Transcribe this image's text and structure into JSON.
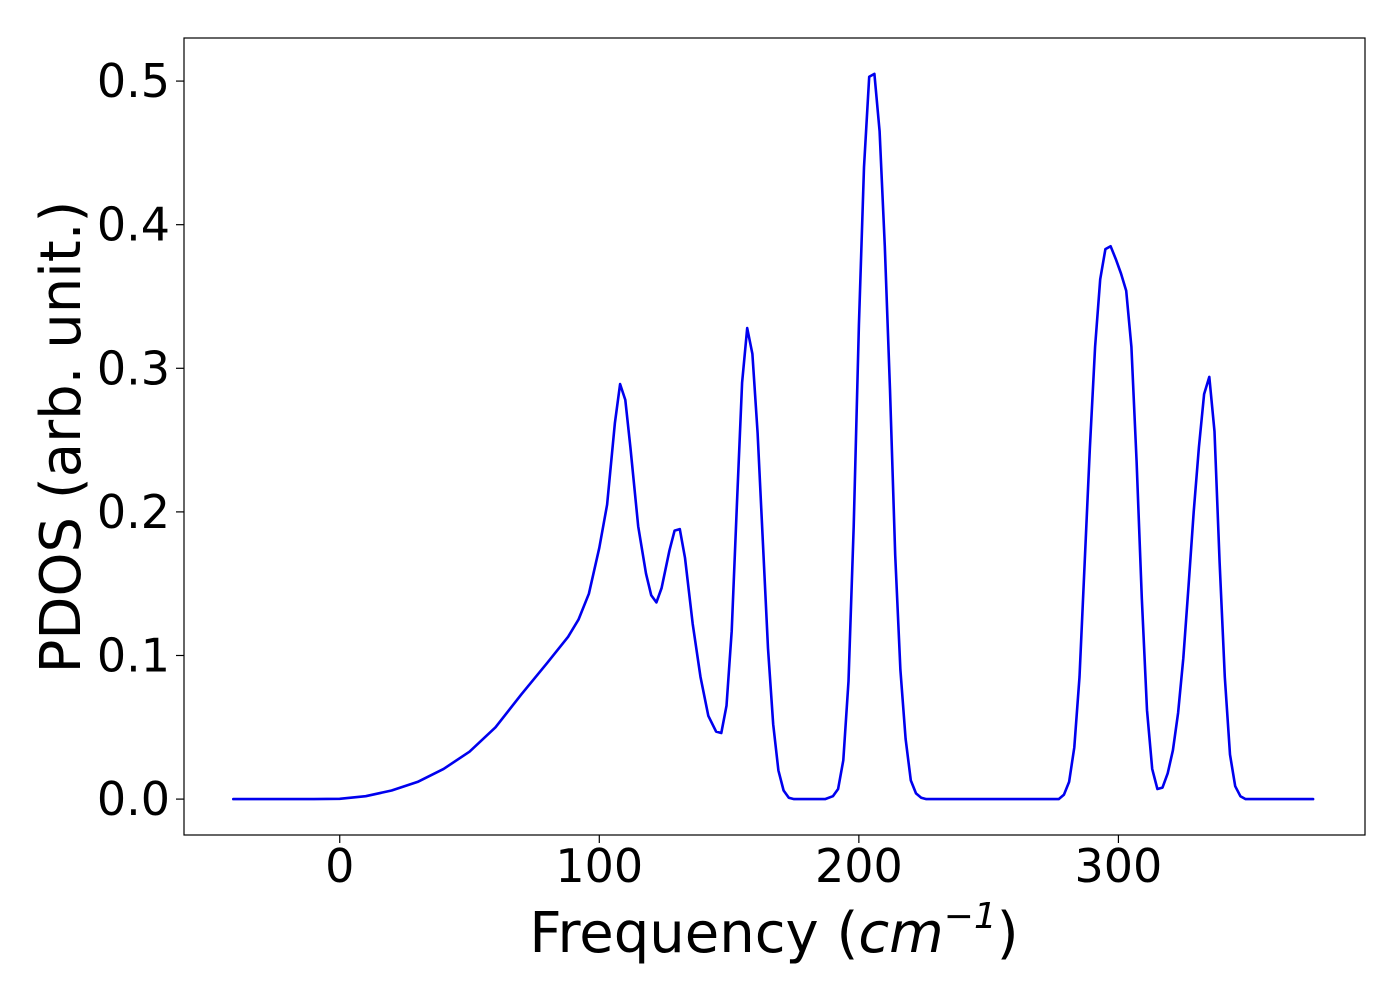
{
  "chart_data": {
    "type": "line",
    "title": "",
    "xlabel_main": "Frequency (",
    "xlabel_var": "cm",
    "xlabel_sup": "−1",
    "xlabel_close": ")",
    "ylabel": "PDOS (arb. unit.)",
    "xlim": [
      -60,
      395
    ],
    "ylim": [
      -0.025,
      0.53
    ],
    "xticks": [
      0,
      100,
      200,
      300
    ],
    "xtick_labels": [
      "0",
      "100",
      "200",
      "300"
    ],
    "yticks": [
      0.0,
      0.1,
      0.2,
      0.3,
      0.4,
      0.5
    ],
    "ytick_labels": [
      "0.0",
      "0.1",
      "0.2",
      "0.3",
      "0.4",
      "0.5"
    ],
    "grid": false,
    "series": [
      {
        "color": "#0000ee",
        "x": [
          -41,
          -10,
          0,
          10,
          20,
          30,
          40,
          50,
          60,
          70,
          80,
          88,
          92,
          96,
          100,
          103,
          106,
          108,
          110,
          112,
          115,
          118,
          120,
          122,
          124,
          127,
          129,
          131,
          133,
          136,
          139,
          142,
          145,
          147,
          149,
          151,
          153,
          155,
          157,
          159,
          161,
          163,
          165,
          167,
          169,
          171,
          173,
          175,
          180,
          187,
          190,
          192,
          194,
          196,
          198,
          200,
          202,
          204,
          206,
          208,
          210,
          212,
          214,
          216,
          218,
          220,
          222,
          224,
          226,
          228,
          230,
          250,
          270,
          277,
          279,
          281,
          283,
          285,
          287,
          289,
          291,
          293,
          295,
          297,
          299,
          301,
          303,
          305,
          307,
          309,
          311,
          313,
          315,
          317,
          319,
          321,
          323,
          325,
          327,
          329,
          331,
          333,
          335,
          337,
          339,
          341,
          343,
          345,
          347,
          349,
          351,
          355,
          375
        ],
        "y": [
          0.0,
          0.0,
          0.0002,
          0.002,
          0.006,
          0.012,
          0.021,
          0.033,
          0.05,
          0.073,
          0.095,
          0.113,
          0.125,
          0.143,
          0.175,
          0.205,
          0.262,
          0.289,
          0.278,
          0.245,
          0.19,
          0.157,
          0.142,
          0.137,
          0.147,
          0.173,
          0.187,
          0.188,
          0.168,
          0.122,
          0.085,
          0.058,
          0.047,
          0.046,
          0.065,
          0.117,
          0.205,
          0.29,
          0.328,
          0.31,
          0.255,
          0.18,
          0.105,
          0.052,
          0.02,
          0.006,
          0.001,
          0.0,
          0.0,
          0.0,
          0.002,
          0.007,
          0.027,
          0.082,
          0.19,
          0.33,
          0.44,
          0.503,
          0.505,
          0.465,
          0.385,
          0.285,
          0.17,
          0.09,
          0.042,
          0.013,
          0.004,
          0.001,
          0.0,
          0.0,
          0.0,
          0.0,
          0.0,
          0.0,
          0.003,
          0.012,
          0.036,
          0.085,
          0.165,
          0.245,
          0.315,
          0.362,
          0.383,
          0.385,
          0.376,
          0.366,
          0.354,
          0.315,
          0.235,
          0.14,
          0.062,
          0.021,
          0.007,
          0.008,
          0.018,
          0.034,
          0.06,
          0.098,
          0.148,
          0.2,
          0.245,
          0.282,
          0.294,
          0.256,
          0.165,
          0.085,
          0.031,
          0.009,
          0.002,
          0.0,
          0.0,
          0.0,
          0.0
        ]
      }
    ]
  }
}
